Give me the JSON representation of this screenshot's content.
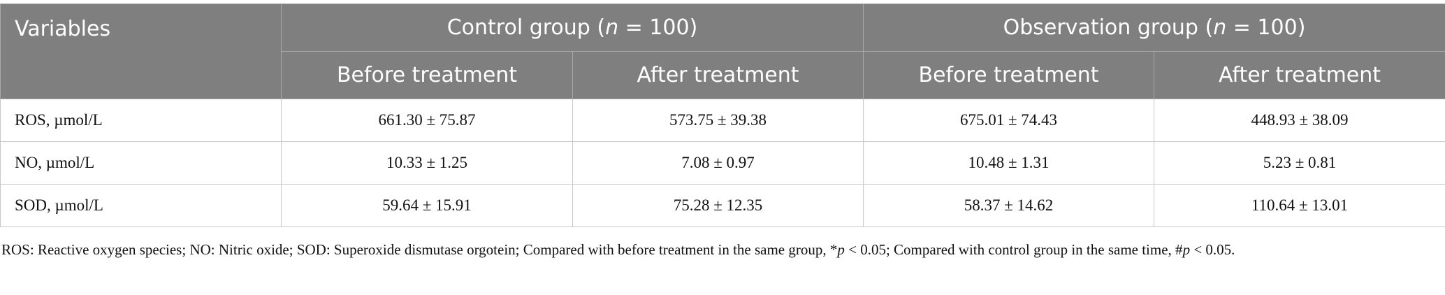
{
  "table": {
    "header": {
      "variables": "Variables",
      "groups": [
        {
          "prefix": "Control group (",
          "italic": "n",
          "suffix": " = 100)"
        },
        {
          "prefix": "Observation group (",
          "italic": "n",
          "suffix": " = 100)"
        }
      ],
      "subheaders": [
        "Before treatment",
        "After treatment",
        "Before treatment",
        "After treatment"
      ]
    },
    "rows": [
      [
        "ROS, µmol/L",
        "661.30 ± 75.87",
        "573.75 ± 39.38",
        "675.01 ± 74.43",
        "448.93 ± 38.09"
      ],
      [
        "NO, µmol/L",
        "10.33 ± 1.25",
        "7.08 ± 0.97",
        "10.48 ± 1.31",
        "5.23 ± 0.81"
      ],
      [
        "SOD, µmol/L",
        "59.64 ± 15.91",
        "75.28 ± 12.35",
        "58.37 ± 14.62",
        "110.64 ± 13.01"
      ]
    ]
  },
  "footnote": [
    "ROS: Reactive oxygen species; NO: Nitric oxide; SOD: Superoxide dismutase orgotein; Compared with before treatment in the same group, *",
    "p",
    " < 0.05; Compared with control group in the same time, #",
    "p",
    " < 0.05."
  ]
}
